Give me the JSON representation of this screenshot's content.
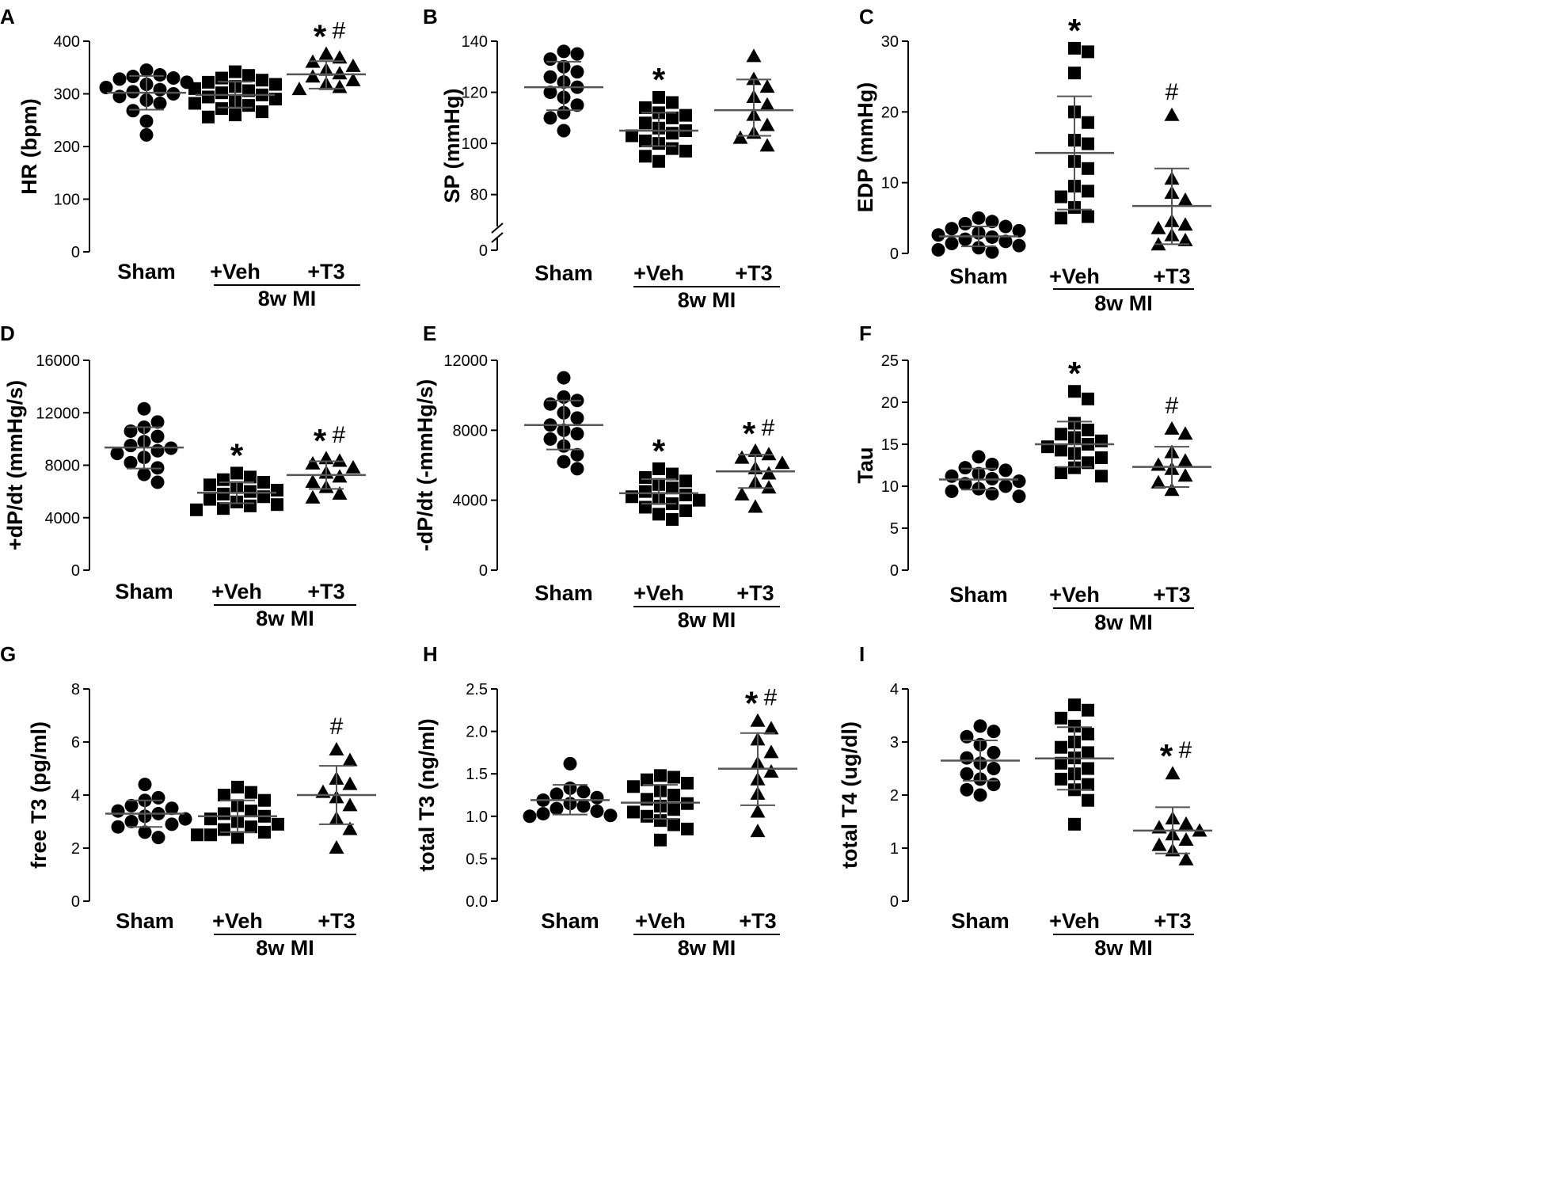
{
  "figure": {
    "categories": [
      "Sham",
      "+Veh",
      "+T3"
    ],
    "group_label": "8w MI",
    "marker_shapes": [
      "circle",
      "square",
      "triangle"
    ],
    "colors": {
      "points": "#000000",
      "axis": "#000000",
      "error_bars": "#555555"
    }
  },
  "chart_data": [
    {
      "panel": "A",
      "type": "scatter",
      "ylabel": "HR (bpm)",
      "ylim": [
        0,
        400
      ],
      "yticks": [
        0,
        100,
        200,
        300,
        400
      ],
      "series": [
        {
          "name": "Sham",
          "mean": 302,
          "sd_low": 270,
          "sd_high": 334,
          "values": [
            345,
            336,
            333,
            330,
            328,
            322,
            318,
            312,
            308,
            304,
            300,
            295,
            288,
            282,
            268,
            248,
            222
          ]
        },
        {
          "name": "+Veh",
          "mean": 298,
          "sd_low": 274,
          "sd_high": 323,
          "values": [
            342,
            335,
            330,
            326,
            322,
            318,
            314,
            310,
            306,
            302,
            298,
            294,
            290,
            286,
            282,
            278,
            272,
            266,
            260,
            256
          ]
        },
        {
          "name": "+T3",
          "mean": 337,
          "sd_low": 310,
          "sd_high": 362,
          "values": [
            375,
            368,
            360,
            352,
            345,
            338,
            332,
            325,
            318,
            312,
            308
          ]
        }
      ],
      "annotations": [
        {
          "category": "+T3",
          "star": "*",
          "hash": "#"
        }
      ]
    },
    {
      "panel": "B",
      "type": "scatter",
      "ylabel": "SP (mmHg)",
      "ylim": [
        0,
        140
      ],
      "yticks": [
        0,
        80,
        100,
        120,
        140
      ],
      "axis_break": true,
      "series": [
        {
          "name": "Sham",
          "mean": 122,
          "sd_low": 113,
          "sd_high": 132,
          "values": [
            136,
            135,
            133,
            130,
            128,
            126,
            124,
            122,
            120,
            118,
            115,
            112,
            110,
            105
          ]
        },
        {
          "name": "+Veh",
          "mean": 105,
          "sd_low": 99,
          "sd_high": 112,
          "values": [
            118,
            116,
            114,
            112,
            111,
            110,
            108,
            106,
            105,
            104,
            103,
            101,
            100,
            98,
            97,
            95,
            93
          ]
        },
        {
          "name": "+T3",
          "mean": 113,
          "sd_low": 103,
          "sd_high": 125,
          "values": [
            134,
            125,
            122,
            118,
            115,
            111,
            107,
            104,
            102,
            99
          ]
        }
      ],
      "annotations": [
        {
          "category": "+Veh",
          "star": "*",
          "hash": ""
        }
      ]
    },
    {
      "panel": "C",
      "type": "scatter",
      "ylabel": "EDP (mmHg)",
      "ylim": [
        0,
        30
      ],
      "yticks": [
        0,
        10,
        20,
        30
      ],
      "series": [
        {
          "name": "Sham",
          "mean": 2.4,
          "sd_low": 1.0,
          "sd_high": 3.8,
          "values": [
            5.0,
            4.5,
            4.2,
            3.8,
            3.5,
            3.2,
            2.9,
            2.6,
            2.3,
            2.0,
            1.7,
            1.4,
            1.1,
            0.8,
            0.5,
            0.2
          ]
        },
        {
          "name": "+Veh",
          "mean": 14.2,
          "sd_low": 6.2,
          "sd_high": 22.2,
          "values": [
            29.0,
            28.5,
            25.5,
            20.0,
            18.5,
            16.0,
            15.5,
            13.0,
            12.0,
            9.5,
            8.8,
            8.0,
            6.5,
            5.2,
            5.0
          ]
        },
        {
          "name": "+T3",
          "mean": 6.7,
          "sd_low": 1.3,
          "sd_high": 12.0,
          "values": [
            19.5,
            10.5,
            8.5,
            7.5,
            4.5,
            4.0,
            3.5,
            2.5,
            1.8,
            1.2
          ]
        }
      ],
      "annotations": [
        {
          "category": "+Veh",
          "star": "*",
          "hash": ""
        },
        {
          "category": "+T3",
          "star": "",
          "hash": "#"
        }
      ]
    },
    {
      "panel": "D",
      "type": "scatter",
      "ylabel": "+dP/dt (mmHg/s)",
      "ylim": [
        0,
        16000
      ],
      "yticks": [
        0,
        4000,
        8000,
        12000,
        16000
      ],
      "series": [
        {
          "name": "Sham",
          "mean": 9350,
          "sd_low": 7750,
          "sd_high": 10900,
          "values": [
            12300,
            11300,
            10900,
            10600,
            10200,
            9800,
            9500,
            9300,
            9100,
            8900,
            8600,
            8200,
            7800,
            7300,
            6700
          ]
        },
        {
          "name": "+Veh",
          "mean": 5900,
          "sd_low": 5100,
          "sd_high": 6700,
          "values": [
            7400,
            7100,
            6900,
            6700,
            6500,
            6300,
            6100,
            6000,
            5800,
            5600,
            5400,
            5200,
            5000,
            4900,
            4700,
            4600
          ]
        },
        {
          "name": "+T3",
          "mean": 7250,
          "sd_low": 6200,
          "sd_high": 8300,
          "values": [
            8500,
            8300,
            8100,
            7800,
            7400,
            7100,
            6700,
            6300,
            5800,
            5500
          ]
        }
      ],
      "annotations": [
        {
          "category": "+Veh",
          "star": "*",
          "hash": ""
        },
        {
          "category": "+T3",
          "star": "*",
          "hash": "#"
        }
      ]
    },
    {
      "panel": "E",
      "type": "scatter",
      "ylabel": "-dP/dt (-mmHg/s)",
      "ylim": [
        0,
        12000
      ],
      "yticks": [
        0,
        4000,
        8000,
        12000
      ],
      "series": [
        {
          "name": "Sham",
          "mean": 8300,
          "sd_low": 6900,
          "sd_high": 9700,
          "values": [
            11000,
            9900,
            9700,
            9500,
            9000,
            8700,
            8300,
            8000,
            7800,
            7500,
            7100,
            6600,
            6200,
            5800
          ]
        },
        {
          "name": "+Veh",
          "mean": 4400,
          "sd_low": 3800,
          "sd_high": 5200,
          "values": [
            5800,
            5500,
            5300,
            5100,
            4900,
            4700,
            4500,
            4300,
            4200,
            4100,
            4000,
            3800,
            3600,
            3400,
            3200,
            2900
          ]
        },
        {
          "name": "+T3",
          "mean": 5650,
          "sd_low": 4700,
          "sd_high": 6600,
          "values": [
            6800,
            6600,
            6400,
            6100,
            5800,
            5500,
            5000,
            4700,
            4300,
            3600
          ]
        }
      ],
      "annotations": [
        {
          "category": "+Veh",
          "star": "*",
          "hash": ""
        },
        {
          "category": "+T3",
          "star": "*",
          "hash": "#"
        }
      ]
    },
    {
      "panel": "F",
      "type": "scatter",
      "ylabel": "Tau",
      "ylim": [
        0,
        25
      ],
      "yticks": [
        0,
        5,
        10,
        15,
        20,
        25
      ],
      "series": [
        {
          "name": "Sham",
          "mean": 10.8,
          "sd_low": 9.6,
          "sd_high": 12.1,
          "values": [
            13.5,
            12.6,
            12.2,
            11.9,
            11.5,
            11.2,
            10.9,
            10.6,
            10.3,
            10.0,
            9.7,
            9.4,
            9.1,
            8.8
          ]
        },
        {
          "name": "+Veh",
          "mean": 15.0,
          "sd_low": 12.3,
          "sd_high": 17.7,
          "values": [
            21.3,
            20.4,
            17.5,
            16.7,
            16.2,
            15.8,
            15.4,
            15.0,
            14.7,
            14.3,
            13.9,
            13.4,
            12.8,
            12.2,
            11.6,
            11.2
          ]
        },
        {
          "name": "+T3",
          "mean": 12.3,
          "sd_low": 9.9,
          "sd_high": 14.7,
          "values": [
            16.8,
            16.2,
            14.0,
            13.0,
            12.5,
            12.0,
            11.2,
            10.4,
            9.5
          ]
        }
      ],
      "annotations": [
        {
          "category": "+Veh",
          "star": "*",
          "hash": ""
        },
        {
          "category": "+T3",
          "star": "",
          "hash": "#"
        }
      ]
    },
    {
      "panel": "G",
      "type": "scatter",
      "ylabel": "free T3 (pg/ml)",
      "ylim": [
        0,
        8
      ],
      "yticks": [
        0,
        2,
        4,
        6,
        8
      ],
      "series": [
        {
          "name": "Sham",
          "mean": 3.3,
          "sd_low": 2.8,
          "sd_high": 3.8,
          "values": [
            4.4,
            3.9,
            3.8,
            3.6,
            3.5,
            3.4,
            3.3,
            3.2,
            3.1,
            3.0,
            2.9,
            2.8,
            2.6,
            2.4
          ]
        },
        {
          "name": "+Veh",
          "mean": 3.2,
          "sd_low": 2.6,
          "sd_high": 3.8,
          "values": [
            4.3,
            4.1,
            4.0,
            3.8,
            3.6,
            3.4,
            3.3,
            3.2,
            3.1,
            3.0,
            2.9,
            2.8,
            2.7,
            2.6,
            2.5,
            2.5,
            2.4
          ]
        },
        {
          "name": "+T3",
          "mean": 4.0,
          "sd_low": 2.9,
          "sd_high": 5.1,
          "values": [
            5.7,
            5.3,
            4.6,
            4.4,
            4.1,
            3.9,
            3.6,
            3.1,
            2.7,
            2.0
          ]
        }
      ],
      "annotations": [
        {
          "category": "+T3",
          "star": "",
          "hash": "#"
        }
      ]
    },
    {
      "panel": "H",
      "type": "scatter",
      "ylabel": "total T3 (ng/ml)",
      "ylim": [
        0,
        2.5
      ],
      "yticks": [
        0.0,
        0.5,
        1.0,
        1.5,
        2.0,
        2.5
      ],
      "series": [
        {
          "name": "Sham",
          "mean": 1.19,
          "sd_low": 1.02,
          "sd_high": 1.37,
          "values": [
            1.62,
            1.33,
            1.29,
            1.26,
            1.22,
            1.19,
            1.15,
            1.12,
            1.09,
            1.06,
            1.03,
            1.01,
            1.0
          ]
        },
        {
          "name": "+Veh",
          "mean": 1.16,
          "sd_low": 0.97,
          "sd_high": 1.37,
          "values": [
            1.48,
            1.46,
            1.43,
            1.39,
            1.35,
            1.3,
            1.25,
            1.2,
            1.15,
            1.12,
            1.08,
            1.05,
            1.0,
            0.95,
            0.9,
            0.85,
            0.72
          ]
        },
        {
          "name": "+T3",
          "mean": 1.56,
          "sd_low": 1.13,
          "sd_high": 1.98,
          "values": [
            2.12,
            2.03,
            1.9,
            1.75,
            1.62,
            1.52,
            1.43,
            1.26,
            1.05,
            0.82
          ]
        }
      ],
      "annotations": [
        {
          "category": "+T3",
          "star": "*",
          "hash": "#"
        }
      ]
    },
    {
      "panel": "I",
      "type": "scatter",
      "ylabel": "total T4 (ug/dl)",
      "ylim": [
        0,
        4
      ],
      "yticks": [
        0,
        1,
        2,
        3,
        4
      ],
      "series": [
        {
          "name": "Sham",
          "mean": 2.65,
          "sd_low": 2.27,
          "sd_high": 3.03,
          "values": [
            3.3,
            3.2,
            3.1,
            2.95,
            2.8,
            2.7,
            2.6,
            2.5,
            2.4,
            2.3,
            2.2,
            2.1,
            2.0
          ]
        },
        {
          "name": "+Veh",
          "mean": 2.69,
          "sd_low": 2.1,
          "sd_high": 3.28,
          "values": [
            3.7,
            3.6,
            3.45,
            3.3,
            3.15,
            3.0,
            2.9,
            2.8,
            2.7,
            2.6,
            2.5,
            2.4,
            2.3,
            2.2,
            2.1,
            1.9,
            1.45
          ]
        },
        {
          "name": "+T3",
          "mean": 1.33,
          "sd_low": 0.9,
          "sd_high": 1.77,
          "values": [
            2.4,
            1.55,
            1.45,
            1.38,
            1.32,
            1.25,
            1.15,
            1.05,
            0.95,
            0.78
          ]
        }
      ],
      "annotations": [
        {
          "category": "+T3",
          "star": "*",
          "hash": "#"
        }
      ]
    }
  ]
}
